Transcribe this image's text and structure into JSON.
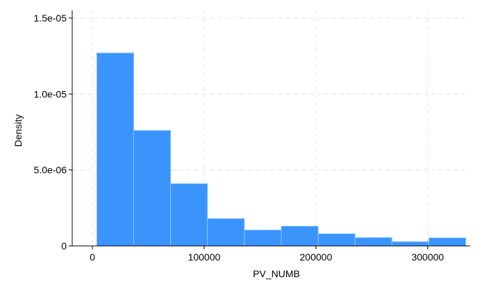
{
  "chart_data": {
    "type": "bar",
    "subtype": "histogram",
    "xlabel": "PV_NUMB",
    "ylabel": "Density",
    "xlim": [
      -18000,
      338000
    ],
    "ylim": [
      0,
      1.55e-05
    ],
    "x_ticks": [
      0,
      100000,
      200000,
      300000
    ],
    "x_tick_labels": [
      "0",
      "100000",
      "200000",
      "300000"
    ],
    "y_ticks": [
      0,
      5e-06,
      1e-05,
      1.5e-05
    ],
    "y_tick_labels": [
      "0",
      "5.0e-06",
      "1.0e-05",
      "1.5e-05"
    ],
    "grid": true,
    "bin_edges": [
      4000,
      37000,
      70000,
      103000,
      136000,
      169000,
      202000,
      235000,
      268000,
      301000,
      334000
    ],
    "values": [
      1.27e-05,
      7.6e-06,
      4.1e-06,
      1.8e-06,
      1.05e-06,
      1.3e-06,
      8e-07,
      5.5e-07,
      2.8e-07,
      5.3e-07
    ],
    "colors": {
      "bar_fill": "#3a94fc",
      "bar_edge": "#8cc4ff",
      "grid": "#e5e5e5",
      "axis": "#000000"
    }
  }
}
